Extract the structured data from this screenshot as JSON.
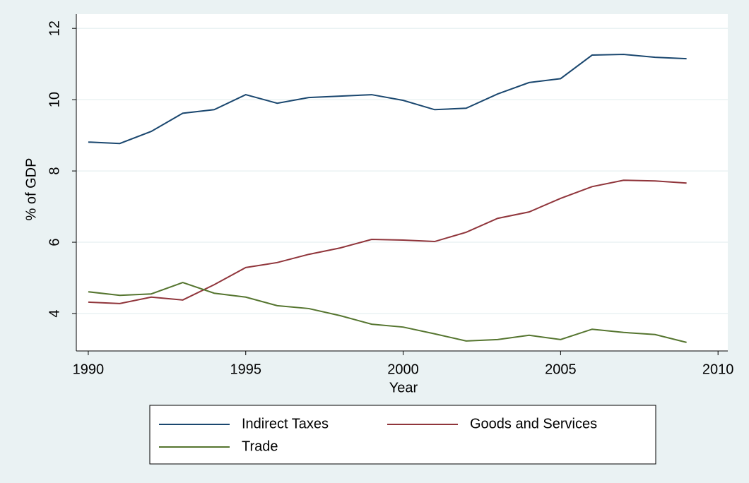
{
  "chart_data": {
    "type": "line",
    "xlabel": "Year",
    "ylabel": "% of GDP",
    "x": [
      1990,
      1991,
      1992,
      1993,
      1994,
      1995,
      1996,
      1997,
      1998,
      1999,
      2000,
      2001,
      2002,
      2003,
      2004,
      2005,
      2006,
      2007,
      2008,
      2009
    ],
    "series": [
      {
        "name": "Indirect Taxes",
        "color": "#1a476f",
        "values": [
          8.81,
          8.77,
          9.11,
          9.62,
          9.72,
          10.14,
          9.9,
          10.06,
          10.1,
          10.14,
          9.98,
          9.72,
          9.76,
          10.16,
          10.48,
          10.59,
          11.25,
          11.27,
          11.19,
          11.15
        ]
      },
      {
        "name": "Goods and Services",
        "color": "#90353b",
        "values": [
          4.32,
          4.28,
          4.46,
          4.38,
          4.81,
          5.29,
          5.43,
          5.66,
          5.84,
          6.08,
          6.06,
          6.02,
          6.28,
          6.67,
          6.85,
          7.23,
          7.56,
          7.74,
          7.72,
          7.66
        ]
      },
      {
        "name": "Trade",
        "color": "#55752f",
        "values": [
          4.61,
          4.51,
          4.55,
          4.87,
          4.57,
          4.46,
          4.22,
          4.14,
          3.94,
          3.7,
          3.62,
          3.43,
          3.23,
          3.27,
          3.39,
          3.27,
          3.56,
          3.47,
          3.41,
          3.19
        ]
      }
    ],
    "xlim": [
      1989.62,
      2010.31
    ],
    "xticks": [
      1990,
      1995,
      2000,
      2005,
      2010
    ],
    "ylim": [
      2.95,
      12.4
    ],
    "yticks": [
      4,
      6,
      8,
      10,
      12
    ],
    "grid": true
  }
}
